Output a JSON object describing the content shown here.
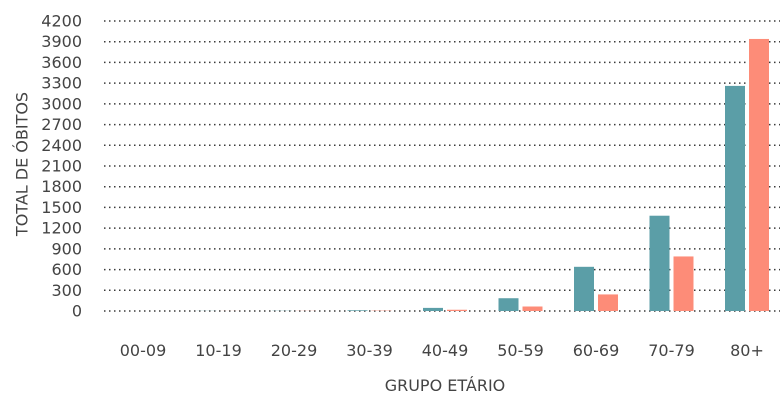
{
  "chart_data": {
    "type": "bar",
    "categories": [
      "00-09",
      "10-19",
      "20-29",
      "30-39",
      "40-49",
      "50-59",
      "60-69",
      "70-79",
      "80+"
    ],
    "series": [
      {
        "color": "#5b9ea7",
        "values": [
          0,
          2,
          3,
          10,
          45,
          185,
          640,
          1380,
          3260
        ]
      },
      {
        "color": "#fd8c78",
        "values": [
          0,
          1,
          2,
          5,
          18,
          65,
          240,
          790,
          3940
        ]
      }
    ],
    "title": "",
    "xlabel": "GRUPO ETÁRIO",
    "ylabel": "TOTAL DE ÓBITOS",
    "ylim": [
      0,
      4200
    ],
    "yticks": [
      0,
      300,
      600,
      900,
      1200,
      1500,
      1800,
      2100,
      2400,
      2700,
      3000,
      3300,
      3600,
      3900,
      4200
    ],
    "grid": true,
    "legend": "none"
  }
}
